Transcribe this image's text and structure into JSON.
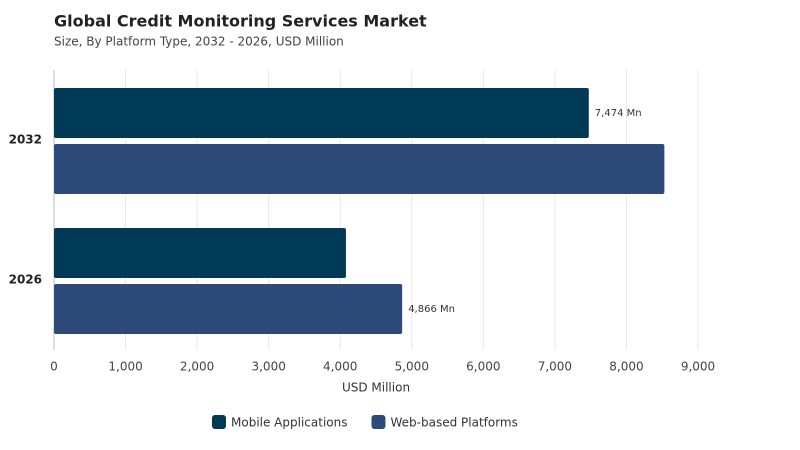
{
  "chart_data": {
    "type": "hbar",
    "title": "Global Credit Monitoring Services Market",
    "subtitle": "Size, By Platform Type, 2032 - 2026, USD Million",
    "xlabel": "USD Million",
    "categories": [
      "2032",
      "2026"
    ],
    "series": [
      {
        "name": "Mobile Applications",
        "color": "#003a57",
        "values": [
          7474,
          4080
        ],
        "value_labels": [
          "7,474 Mn",
          null
        ]
      },
      {
        "name": "Web-based Platforms",
        "color": "#2e4a7a",
        "values": [
          8530,
          4866
        ],
        "value_labels": [
          null,
          "4,866 Mn"
        ]
      }
    ],
    "xlim": [
      0,
      9000
    ],
    "xticks": [
      0,
      {
        "value": 1000,
        "label": "1,000"
      },
      {
        "value": 2000,
        "label": "2,000"
      },
      {
        "value": 3000,
        "label": "3,000"
      },
      {
        "value": 4000,
        "label": "4,000"
      },
      {
        "value": 5000,
        "label": "5,000"
      },
      {
        "value": 6000,
        "label": "6,000"
      },
      {
        "value": 7000,
        "label": "7,000"
      },
      {
        "value": 8000,
        "label": "8,000"
      },
      {
        "value": 9000,
        "label": "9,000"
      }
    ],
    "grid": true,
    "legend": "bottom"
  }
}
